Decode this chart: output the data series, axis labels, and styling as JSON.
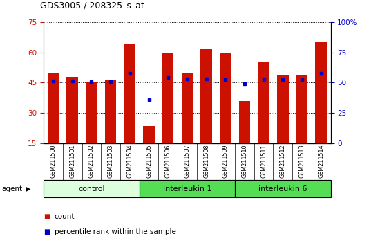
{
  "title": "GDS3005 / 208325_s_at",
  "samples": [
    "GSM211500",
    "GSM211501",
    "GSM211502",
    "GSM211503",
    "GSM211504",
    "GSM211505",
    "GSM211506",
    "GSM211507",
    "GSM211508",
    "GSM211509",
    "GSM211510",
    "GSM211511",
    "GSM211512",
    "GSM211513",
    "GSM211514"
  ],
  "count_values": [
    49.5,
    48.0,
    45.5,
    46.5,
    64.0,
    23.5,
    59.5,
    49.5,
    61.5,
    59.5,
    36.0,
    55.0,
    48.5,
    48.5,
    65.0
  ],
  "percentile_values": [
    46.0,
    46.0,
    45.5,
    45.5,
    49.5,
    36.5,
    47.5,
    47.0,
    47.0,
    46.5,
    44.5,
    46.5,
    46.5,
    46.5,
    49.5
  ],
  "y_min": 15,
  "y_max": 75,
  "y_ticks_left": [
    15,
    30,
    45,
    60,
    75
  ],
  "y_ticks_right_vals": [
    0,
    25,
    50,
    75,
    100
  ],
  "group_configs": [
    [
      0,
      4,
      "control",
      "#ddffdd"
    ],
    [
      5,
      9,
      "interleukin 1",
      "#55dd55"
    ],
    [
      10,
      14,
      "interleukin 6",
      "#55dd55"
    ]
  ],
  "bar_color": "#cc1100",
  "percentile_color": "#0000cc",
  "ylabel_left_color": "#cc1100",
  "ylabel_right_color": "#0000cc",
  "bar_width": 0.6,
  "base_value": 15
}
